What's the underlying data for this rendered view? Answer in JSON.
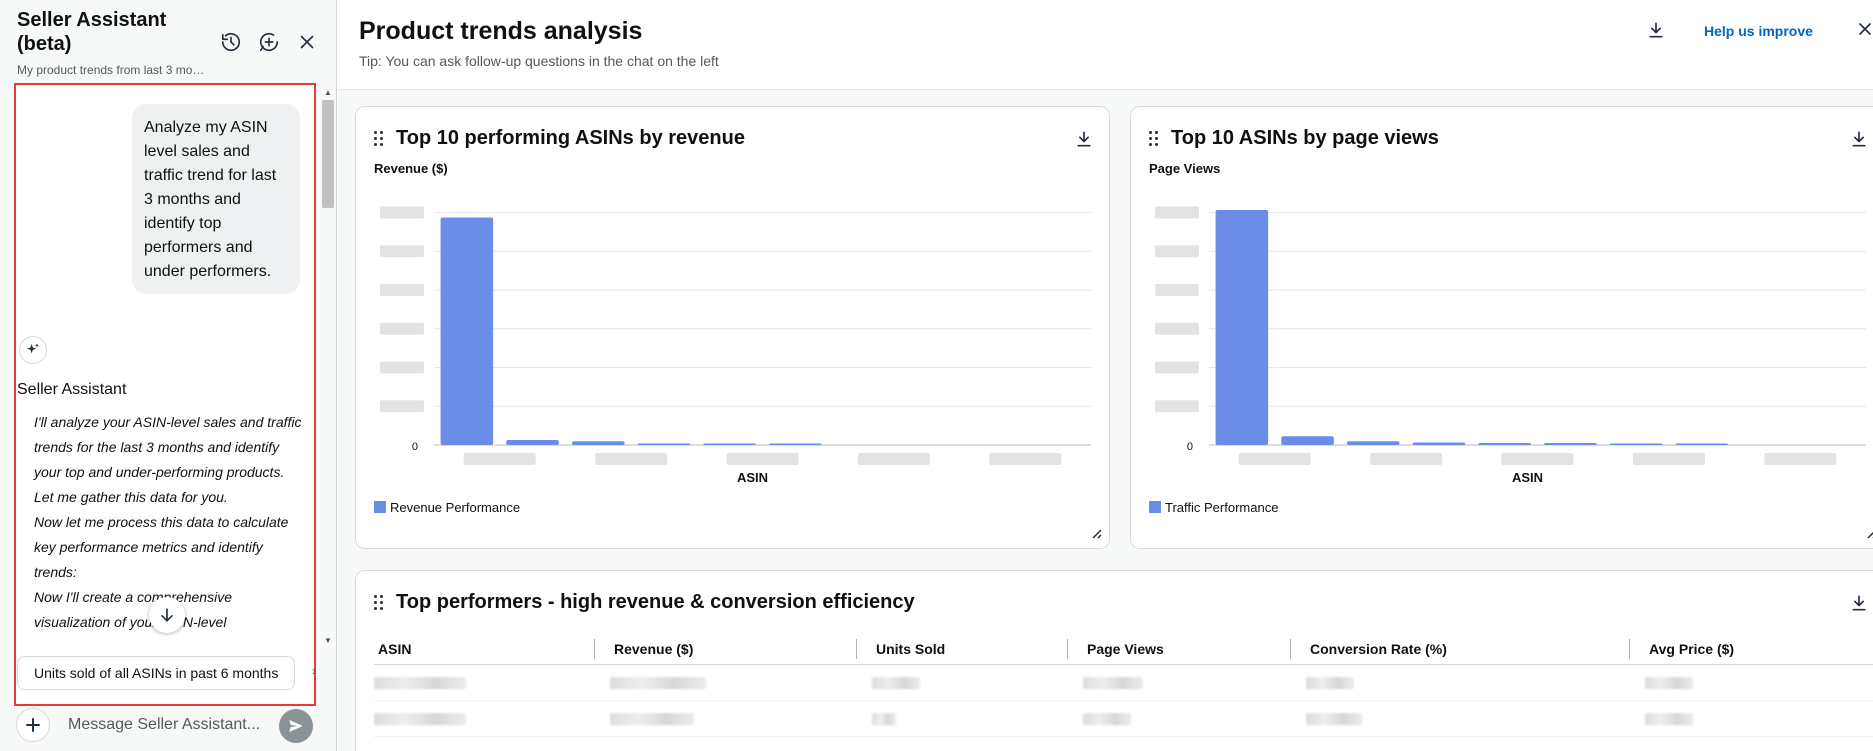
{
  "assistant": {
    "title": "Seller Assistant (beta)",
    "subtitle": "My product trends from last 3 mo…",
    "user_message": "Analyze my ASIN level sales and traffic trend for last 3 months and identify top performers and under performers.",
    "assistant_name": "Seller Assistant",
    "assistant_messages": [
      "I'll analyze your ASIN-level sales and traffic trends for the last 3 months and identify your top and under-performing products. Let me gather this data for you.",
      "Now let me process this data to calculate key performance metrics and identify trends:",
      "Now I'll create a comprehensive visualization of your ASIN-level"
    ],
    "suggestion": "Units sold of all ASINs in past 6 months",
    "input_placeholder": "Message Seller Assistant..."
  },
  "main": {
    "title": "Product trends analysis",
    "tip": "Tip: You can ask follow-up questions in the chat on the left",
    "help_link": "Help us improve"
  },
  "charts": [
    {
      "title": "Top 10 performing ASINs by revenue",
      "ylabel": "Revenue ($)",
      "xlabel": "ASIN",
      "legend": "Revenue Performance",
      "color": "#6b8de8"
    },
    {
      "title": "Top 10 ASINs by page views",
      "ylabel": "Page Views",
      "xlabel": "ASIN",
      "legend": "Traffic Performance",
      "color": "#6b8de8"
    }
  ],
  "chart_data": [
    {
      "type": "bar",
      "title": "Top 10 performing ASINs by revenue",
      "xlabel": "ASIN",
      "ylabel": "Revenue ($)",
      "values": [
        0.91,
        0.02,
        0.015,
        0.005,
        0.001,
        0.001,
        0.0,
        0.0,
        0.0,
        0.0
      ],
      "ylim": [
        0,
        1
      ],
      "y_tick_label_zero": "0",
      "legend": "bottom-left"
    },
    {
      "type": "bar",
      "title": "Top 10 ASINs by page views",
      "xlabel": "ASIN",
      "ylabel": "Page Views",
      "values": [
        0.94,
        0.035,
        0.015,
        0.01,
        0.008,
        0.008,
        0.003,
        0.002,
        0.0,
        0.0
      ],
      "ylim": [
        0,
        1
      ],
      "y_tick_label_zero": "0",
      "legend": "bottom-left"
    }
  ],
  "table": {
    "title": "Top performers - high revenue & conversion efficiency",
    "columns": [
      "ASIN",
      "Revenue ($)",
      "Units Sold",
      "Page Views",
      "Conversion Rate (%)",
      "Avg Price ($)"
    ]
  }
}
